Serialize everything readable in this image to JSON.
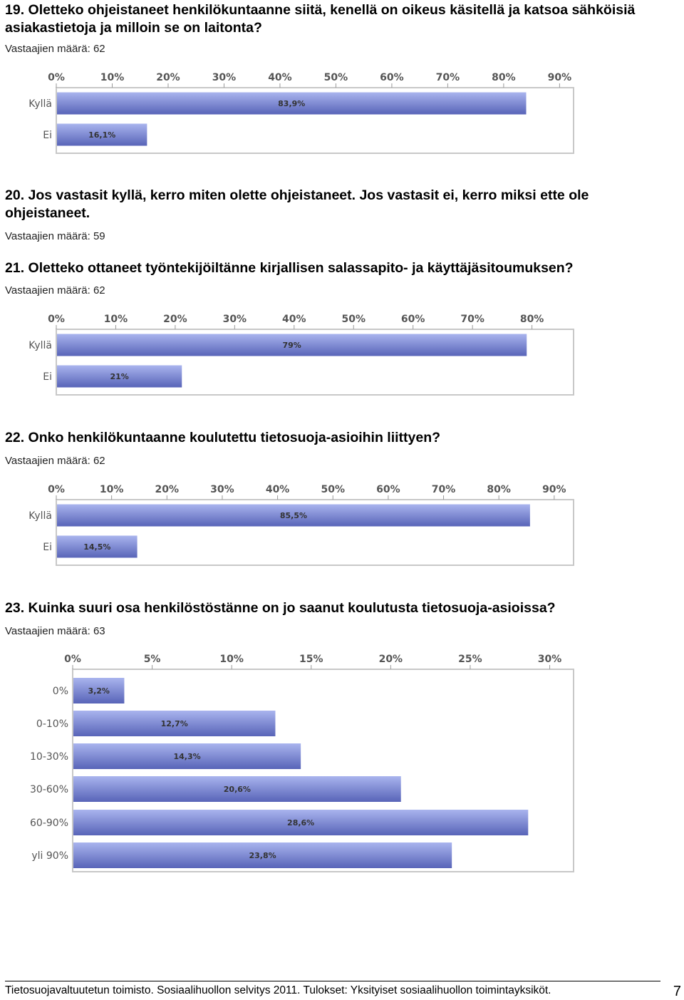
{
  "questions": [
    {
      "title": "19. Oletteko ohjeistaneet henkilökuntaanne siitä, kenellä on oikeus käsitellä ja katsoa sähköisiä asiakastietoja ja milloin se on laitonta?",
      "count": "Vastaajien määrä: 62"
    },
    {
      "title": "20. Jos vastasit kyllä, kerro miten olette ohjeistaneet. Jos vastasit ei, kerro miksi ette ole ohjeistaneet.",
      "count": "Vastaajien määrä: 59"
    },
    {
      "title": "21. Oletteko ottaneet työntekijöiltänne kirjallisen salassapito- ja käyttäjäsitoumuksen?",
      "count": "Vastaajien määrä: 62"
    },
    {
      "title": "22. Onko henkilökuntaanne koulutettu tietosuoja-asioihin liittyen?",
      "count": "Vastaajien määrä: 62"
    },
    {
      "title": "23. Kuinka suuri osa henkilöstöstänne on jo saanut koulutusta tietosuoja-asioissa?",
      "count": "Vastaajien määrä: 63"
    }
  ],
  "chart_data": [
    {
      "type": "bar",
      "orientation": "horizontal",
      "categories": [
        "Kyllä",
        "Ei"
      ],
      "values": [
        83.9,
        16.1
      ],
      "value_labels": [
        "83,9%",
        "16,1%"
      ],
      "ticks": [
        "0%",
        "10%",
        "20%",
        "30%",
        "40%",
        "50%",
        "60%",
        "70%",
        "80%",
        "90%"
      ],
      "xlim": [
        0,
        92.5
      ],
      "grid": false
    },
    {
      "type": "bar",
      "orientation": "horizontal",
      "categories": [
        "Kyllä",
        "Ei"
      ],
      "values": [
        79,
        21
      ],
      "value_labels": [
        "79%",
        "21%"
      ],
      "ticks": [
        "0%",
        "10%",
        "20%",
        "30%",
        "40%",
        "50%",
        "60%",
        "70%",
        "80%"
      ],
      "xlim": [
        0,
        87
      ],
      "grid": false
    },
    {
      "type": "bar",
      "orientation": "horizontal",
      "categories": [
        "Kyllä",
        "Ei"
      ],
      "values": [
        85.5,
        14.5
      ],
      "value_labels": [
        "85,5%",
        "14,5%"
      ],
      "ticks": [
        "0%",
        "10%",
        "20%",
        "30%",
        "40%",
        "50%",
        "60%",
        "70%",
        "80%",
        "90%"
      ],
      "xlim": [
        0,
        93.5
      ],
      "grid": false
    },
    {
      "type": "bar",
      "orientation": "horizontal",
      "categories": [
        "0%",
        "0-10%",
        "10-30%",
        "30-60%",
        "60-90%",
        "yli 90%"
      ],
      "values": [
        3.2,
        12.7,
        14.3,
        20.6,
        28.6,
        23.8
      ],
      "value_labels": [
        "3,2%",
        "12,7%",
        "14,3%",
        "20,6%",
        "28,6%",
        "23,8%"
      ],
      "ticks": [
        "0%",
        "5%",
        "10%",
        "15%",
        "20%",
        "25%",
        "30%"
      ],
      "xlim": [
        0,
        31.5
      ],
      "grid": false
    }
  ],
  "footer": {
    "text": "Tietosuojavaltuutetun toimisto. Sosiaalihuollon selvitys 2011. Tulokset: Yksityiset sosiaalihuollon toimintayksiköt.",
    "page": "7"
  },
  "colors": {
    "bar_top": "#a9b4ee",
    "bar_bottom": "#5864b8",
    "frame": "#c8c8c8"
  }
}
